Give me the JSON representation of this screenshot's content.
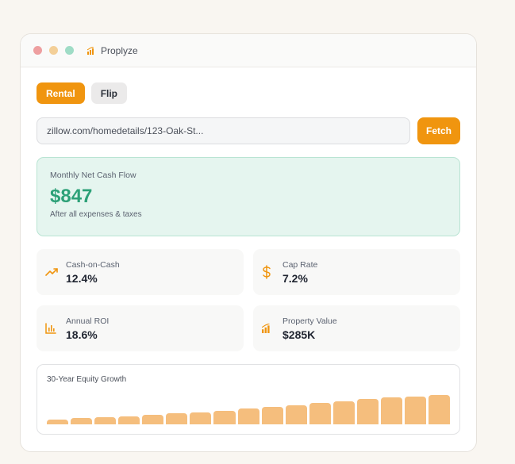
{
  "window": {
    "title": "Proplyze"
  },
  "tabs": [
    {
      "label": "Rental",
      "active": true
    },
    {
      "label": "Flip",
      "active": false
    }
  ],
  "url_input": {
    "value": "zillow.com/homedetails/123-Oak-St..."
  },
  "fetch_button": {
    "label": "Fetch"
  },
  "cash_flow": {
    "label": "Monthly Net Cash Flow",
    "value": "$847",
    "subtext": "After all expenses & taxes"
  },
  "metrics": [
    {
      "label": "Cash-on-Cash",
      "value": "12.4%",
      "icon": "trending-up-icon"
    },
    {
      "label": "Cap Rate",
      "value": "7.2%",
      "icon": "dollar-icon"
    },
    {
      "label": "Annual ROI",
      "value": "18.6%",
      "icon": "bar-chart-icon"
    },
    {
      "label": "Property Value",
      "value": "$285K",
      "icon": "chart-logo-icon"
    }
  ],
  "equity_growth": {
    "title": "30-Year Equity Growth",
    "bar_levels": [
      0.14,
      0.19,
      0.22,
      0.25,
      0.29,
      0.34,
      0.38,
      0.43,
      0.49,
      0.55,
      0.61,
      0.67,
      0.72,
      0.79,
      0.84,
      0.88,
      0.93
    ]
  },
  "colors": {
    "accent": "#f0950f",
    "positive": "#2da178",
    "bar": "#f5be7d"
  }
}
